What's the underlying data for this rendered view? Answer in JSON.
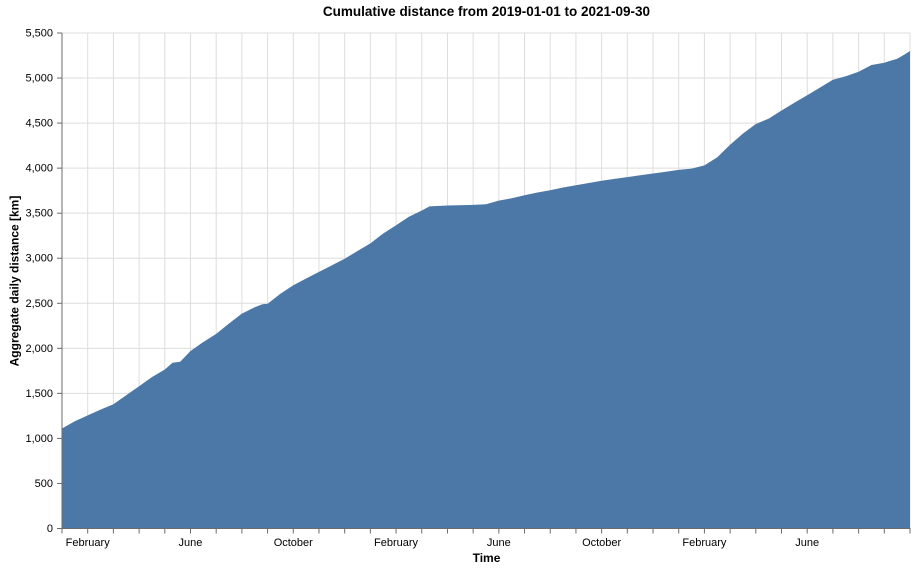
{
  "title": "Cumulative distance from 2019-01-01 to 2021-09-30",
  "axes": {
    "x_label": "Time",
    "y_label": "Aggregate daily distance [km]"
  },
  "colors": {
    "area": "#4C78A8",
    "grid": "#DDDDDD",
    "axis": "#6B6B6B",
    "text": "#000000",
    "background": "#FFFFFF"
  },
  "chart_data": {
    "type": "area",
    "title": "Cumulative distance from 2019-01-01 to 2021-09-30",
    "xlabel": "Time",
    "ylabel": "Aggregate daily distance [km]",
    "x_range": [
      "2019-01-01",
      "2021-09-30"
    ],
    "x_unit": "months since 2019-01-01",
    "xlim": [
      0,
      33
    ],
    "ylim": [
      0,
      5500
    ],
    "grid": true,
    "legend": false,
    "x_tick_every_month": true,
    "y_ticks": [
      {
        "value": 0,
        "label": "0"
      },
      {
        "value": 500,
        "label": "500"
      },
      {
        "value": 1000,
        "label": "1,000"
      },
      {
        "value": 1500,
        "label": "1,500"
      },
      {
        "value": 2000,
        "label": "2,000"
      },
      {
        "value": 2500,
        "label": "2,500"
      },
      {
        "value": 3000,
        "label": "3,000"
      },
      {
        "value": 3500,
        "label": "3,500"
      },
      {
        "value": 4000,
        "label": "4,000"
      },
      {
        "value": 4500,
        "label": "4,500"
      },
      {
        "value": 5000,
        "label": "5,000"
      },
      {
        "value": 5500,
        "label": "5,500"
      }
    ],
    "x_major_ticks": [
      {
        "month": 1,
        "label": "February"
      },
      {
        "month": 5,
        "label": "June"
      },
      {
        "month": 9,
        "label": "October"
      },
      {
        "month": 13,
        "label": "February"
      },
      {
        "month": 17,
        "label": "June"
      },
      {
        "month": 21,
        "label": "October"
      },
      {
        "month": 25,
        "label": "February"
      },
      {
        "month": 29,
        "label": "June"
      }
    ],
    "series": [
      {
        "name": "Aggregate daily distance [km]",
        "color": "#4C78A8",
        "points": [
          [
            0,
            1110
          ],
          [
            0.5,
            1190
          ],
          [
            1,
            1255
          ],
          [
            1.5,
            1320
          ],
          [
            2,
            1380
          ],
          [
            2.5,
            1480
          ],
          [
            3,
            1580
          ],
          [
            3.5,
            1680
          ],
          [
            4,
            1765
          ],
          [
            4.3,
            1840
          ],
          [
            4.6,
            1850
          ],
          [
            5,
            1970
          ],
          [
            5.5,
            2070
          ],
          [
            6,
            2160
          ],
          [
            6.5,
            2275
          ],
          [
            7,
            2385
          ],
          [
            7.5,
            2455
          ],
          [
            7.8,
            2490
          ],
          [
            8,
            2495
          ],
          [
            8.5,
            2605
          ],
          [
            9,
            2700
          ],
          [
            9.5,
            2775
          ],
          [
            10,
            2848
          ],
          [
            10.5,
            2920
          ],
          [
            11,
            2995
          ],
          [
            11.5,
            3080
          ],
          [
            12,
            3165
          ],
          [
            12.5,
            3275
          ],
          [
            13,
            3365
          ],
          [
            13.5,
            3460
          ],
          [
            14,
            3530
          ],
          [
            14.3,
            3575
          ],
          [
            15,
            3585
          ],
          [
            16,
            3592
          ],
          [
            16.5,
            3600
          ],
          [
            17,
            3640
          ],
          [
            17.5,
            3665
          ],
          [
            18,
            3700
          ],
          [
            18.5,
            3730
          ],
          [
            19,
            3755
          ],
          [
            19.5,
            3785
          ],
          [
            20,
            3810
          ],
          [
            20.5,
            3835
          ],
          [
            21,
            3860
          ],
          [
            21.5,
            3880
          ],
          [
            22,
            3900
          ],
          [
            22.5,
            3920
          ],
          [
            23,
            3940
          ],
          [
            23.5,
            3960
          ],
          [
            24,
            3980
          ],
          [
            24.5,
            3995
          ],
          [
            25,
            4030
          ],
          [
            25.5,
            4120
          ],
          [
            26,
            4260
          ],
          [
            26.5,
            4385
          ],
          [
            27,
            4490
          ],
          [
            27.5,
            4550
          ],
          [
            28,
            4640
          ],
          [
            28.5,
            4725
          ],
          [
            29,
            4810
          ],
          [
            29.5,
            4895
          ],
          [
            30,
            4980
          ],
          [
            30.5,
            5020
          ],
          [
            31,
            5070
          ],
          [
            31.5,
            5145
          ],
          [
            32,
            5170
          ],
          [
            32.5,
            5215
          ],
          [
            32.8,
            5265
          ],
          [
            33,
            5300
          ]
        ]
      }
    ]
  }
}
